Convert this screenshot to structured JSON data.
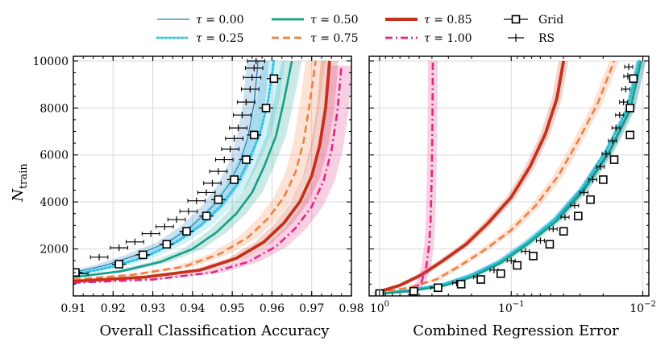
{
  "chart_data": [
    {
      "type": "line",
      "panel": "left",
      "xlabel": "Overall Classification Accuracy",
      "ylabel_main": "N",
      "ylabel_sub": "train",
      "xlim": [
        0.91,
        0.98
      ],
      "ylim": [
        0,
        10200
      ],
      "xticks": [
        0.91,
        0.92,
        0.93,
        0.94,
        0.95,
        0.96,
        0.97,
        0.98
      ],
      "xtick_labels": [
        "0.91",
        "0.92",
        "0.93",
        "0.94",
        "0.95",
        "0.96",
        "0.97",
        "0.98"
      ],
      "yticks": [
        2000,
        4000,
        6000,
        8000,
        10000
      ],
      "ytick_labels": [
        "2000",
        "4000",
        "6000",
        "8000",
        "10000"
      ],
      "grid": true,
      "series": [
        {
          "name": "τ = 0.00",
          "color": "#1f77b4",
          "style": "solid",
          "width": 1.2,
          "band": 0.0028,
          "x": [
            0.91,
            0.918,
            0.926,
            0.934,
            0.94,
            0.945,
            0.949,
            0.952,
            0.954,
            0.9555,
            0.9565
          ],
          "y": [
            1000,
            1300,
            1750,
            2300,
            3000,
            3800,
            4700,
            5700,
            6800,
            8200,
            10000
          ]
        },
        {
          "name": "τ = 0.25",
          "color": "#2ec4e6",
          "style": "dotted",
          "width": 3,
          "band": 0.0028,
          "x": [
            0.91,
            0.92,
            0.928,
            0.936,
            0.942,
            0.947,
            0.951,
            0.954,
            0.957,
            0.959,
            0.9605
          ],
          "y": [
            900,
            1250,
            1650,
            2300,
            3000,
            3800,
            4700,
            5700,
            6900,
            8300,
            10000
          ]
        },
        {
          "name": "τ = 0.50",
          "color": "#11a08a",
          "style": "solid",
          "width": 2.6,
          "band": 0.0025,
          "x": [
            0.91,
            0.922,
            0.932,
            0.94,
            0.946,
            0.951,
            0.955,
            0.958,
            0.961,
            0.963,
            0.965
          ],
          "y": [
            800,
            1050,
            1450,
            2000,
            2700,
            3500,
            4400,
            5500,
            6800,
            8300,
            10000
          ]
        },
        {
          "name": "τ = 0.75",
          "color": "#f07f42",
          "style": "dashed",
          "width": 2.6,
          "band": 0.0025,
          "x": [
            0.91,
            0.925,
            0.938,
            0.947,
            0.954,
            0.959,
            0.963,
            0.966,
            0.968,
            0.9695,
            0.971
          ],
          "y": [
            700,
            900,
            1250,
            1800,
            2500,
            3300,
            4200,
            5300,
            6600,
            8200,
            10000
          ]
        },
        {
          "name": "τ = 0.85",
          "color": "#c5311b",
          "style": "solid",
          "width": 3.8,
          "band": 0.0022,
          "x": [
            0.91,
            0.928,
            0.942,
            0.951,
            0.958,
            0.963,
            0.967,
            0.97,
            0.972,
            0.9735,
            0.9745
          ],
          "y": [
            620,
            800,
            1100,
            1600,
            2300,
            3100,
            4000,
            5100,
            6400,
            8000,
            10000
          ]
        },
        {
          "name": "τ = 1.00",
          "color": "#e52580",
          "style": "dashdot",
          "width": 2.6,
          "band": 0.0028,
          "x": [
            0.91,
            0.93,
            0.945,
            0.954,
            0.961,
            0.966,
            0.97,
            0.973,
            0.975,
            0.9765,
            0.9775
          ],
          "y": [
            560,
            700,
            1000,
            1450,
            2100,
            2900,
            3800,
            4900,
            6200,
            7900,
            9800
          ]
        }
      ],
      "grid_points": {
        "name": "Grid",
        "x": [
          0.9105,
          0.9215,
          0.9275,
          0.9335,
          0.9385,
          0.9435,
          0.9465,
          0.9505,
          0.9535,
          0.9555,
          0.9585,
          0.9605
        ],
        "y": [
          1000,
          1350,
          1750,
          2200,
          2750,
          3400,
          4100,
          4950,
          5800,
          6850,
          8000,
          9250
        ],
        "xerr": 0.0012
      },
      "rs_points": {
        "name": "RS",
        "x": [
          0.9115,
          0.9165,
          0.9215,
          0.9255,
          0.9295,
          0.933,
          0.936,
          0.939,
          0.941,
          0.9435,
          0.945,
          0.9465,
          0.948,
          0.9495,
          0.9505,
          0.9515,
          0.9525,
          0.9535,
          0.9545,
          0.955
        ],
        "y": [
          950,
          1650,
          2050,
          2300,
          2650,
          2950,
          3250,
          3600,
          4050,
          4400,
          4800,
          5300,
          5800,
          6250,
          6700,
          7150,
          7700,
          8250,
          8800,
          9300
        ],
        "extra": [
          {
            "x": 0.9555,
            "y": 9700
          },
          {
            "x": 0.956,
            "y": 10000
          }
        ],
        "xerr": 0.0022
      }
    },
    {
      "type": "line",
      "panel": "right",
      "xlabel": "Combined Regression Error",
      "xscale": "log-inverted",
      "xlim": [
        1.2,
        0.009
      ],
      "ylim": [
        0,
        10200
      ],
      "xticks": [
        1,
        0.1,
        0.01
      ],
      "xtick_labels": [
        "10",
        "10",
        "10"
      ],
      "xtick_exponents": [
        "0",
        "−1",
        "−2"
      ],
      "grid": true,
      "series": [
        {
          "name": "τ = 0.00",
          "color": "#1f77b4",
          "style": "solid",
          "width": 1.2,
          "x": [
            1.05,
            0.6,
            0.33,
            0.2,
            0.12,
            0.075,
            0.045,
            0.028,
            0.018,
            0.0125,
            0.0103
          ],
          "y": [
            100,
            250,
            500,
            900,
            1500,
            2300,
            3300,
            4600,
            6200,
            8000,
            10000
          ]
        },
        {
          "name": "τ = 0.25",
          "color": "#2ec4e6",
          "style": "dotted",
          "width": 3,
          "x": [
            1.05,
            0.6,
            0.33,
            0.2,
            0.12,
            0.075,
            0.046,
            0.029,
            0.019,
            0.013,
            0.0107
          ],
          "y": [
            100,
            250,
            500,
            900,
            1500,
            2300,
            3300,
            4600,
            6200,
            8000,
            10000
          ]
        },
        {
          "name": "τ = 0.50",
          "color": "#11a08a",
          "style": "solid",
          "width": 2.6,
          "x": [
            1.05,
            0.6,
            0.33,
            0.2,
            0.12,
            0.075,
            0.045,
            0.028,
            0.018,
            0.0125,
            0.0103
          ],
          "y": [
            80,
            200,
            420,
            800,
            1400,
            2200,
            3200,
            4500,
            6100,
            7900,
            10000
          ]
        },
        {
          "name": "τ = 0.75",
          "color": "#f07f42",
          "style": "dashed",
          "width": 2.6,
          "x": [
            1.05,
            0.6,
            0.37,
            0.25,
            0.16,
            0.1,
            0.065,
            0.044,
            0.031,
            0.022,
            0.0165
          ],
          "y": [
            120,
            350,
            700,
            1250,
            1950,
            2800,
            3850,
            5100,
            6600,
            8200,
            10000
          ]
        },
        {
          "name": "τ = 0.85",
          "color": "#c5311b",
          "style": "solid",
          "width": 3.8,
          "x": [
            1.05,
            0.7,
            0.48,
            0.33,
            0.22,
            0.15,
            0.1,
            0.072,
            0.055,
            0.045,
            0.04
          ],
          "y": [
            150,
            450,
            900,
            1500,
            2200,
            3100,
            4200,
            5500,
            6900,
            8400,
            10000
          ]
        },
        {
          "name": "τ = 1.00",
          "color": "#e52580",
          "style": "dashdot",
          "width": 2.6,
          "x": [
            0.58,
            0.48,
            0.44,
            0.42,
            0.41,
            0.405,
            0.4,
            0.398,
            0.396,
            0.395,
            0.394
          ],
          "y": [
            80,
            600,
            1300,
            2200,
            3200,
            4300,
            5500,
            6700,
            7900,
            9000,
            10000
          ]
        }
      ],
      "grid_points": {
        "name": "Grid",
        "x": [
          1.0,
          0.55,
          0.36,
          0.24,
          0.17,
          0.12,
          0.09,
          0.068,
          0.051,
          0.04,
          0.031,
          0.025,
          0.02,
          0.0165,
          0.0125
        ],
        "y": [
          100,
          200,
          350,
          500,
          700,
          950,
          1300,
          1700,
          2200,
          2750,
          3400,
          4100,
          4950,
          5800,
          6850
        ]
      },
      "rs_points": {
        "name": "RS",
        "x": [
          1.0,
          0.55,
          0.38,
          0.26,
          0.18,
          0.135,
          0.1,
          0.078,
          0.06,
          0.048,
          0.039,
          0.033,
          0.028,
          0.024,
          0.021,
          0.019,
          0.017,
          0.016,
          0.015,
          0.014,
          0.0135,
          0.013
        ],
        "y": [
          100,
          200,
          350,
          550,
          800,
          1100,
          1500,
          1900,
          2350,
          2850,
          3350,
          3850,
          4400,
          4950,
          5500,
          6050,
          6600,
          7150,
          7700,
          8250,
          8800,
          9350
        ]
      },
      "grid_points_top": {
        "x": [
          0.0125,
          0.0118
        ],
        "y": [
          8000,
          9250
        ]
      },
      "rs_points_top": {
        "x": [
          0.0128
        ],
        "y": [
          9750
        ]
      }
    }
  ],
  "legend": {
    "entries": [
      {
        "label": "τ = 0.00",
        "color": "#1f77b4",
        "style": "solid"
      },
      {
        "label": "τ = 0.25",
        "color": "#2ec4e6",
        "style": "dotted"
      },
      {
        "label": "τ = 0.50",
        "color": "#11a08a",
        "style": "solid"
      },
      {
        "label": "τ = 0.75",
        "color": "#f07f42",
        "style": "dashed"
      },
      {
        "label": "τ = 0.85",
        "color": "#c5311b",
        "style": "solid"
      },
      {
        "label": "τ = 1.00",
        "color": "#e52580",
        "style": "dashdot"
      },
      {
        "label": "Grid",
        "color": "#000000",
        "style": "square"
      },
      {
        "label": "RS",
        "color": "#000000",
        "style": "plus"
      }
    ]
  }
}
